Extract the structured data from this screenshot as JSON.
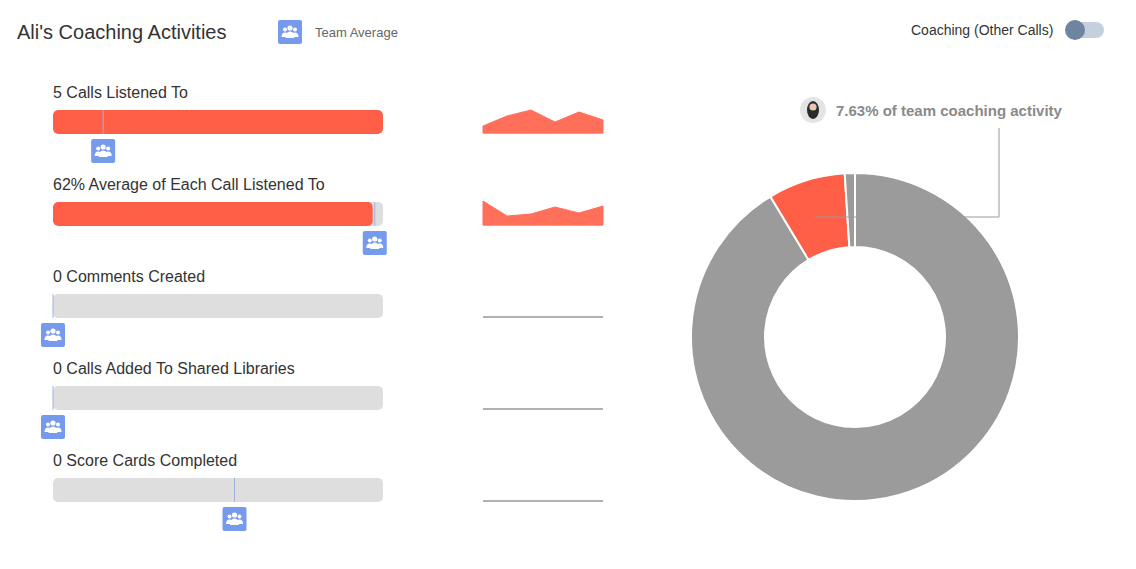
{
  "header": {
    "title": "Ali's Coaching Activities",
    "legend_label": "Team Average",
    "toggle_label": "Coaching (Other Calls)"
  },
  "chart_data": [
    {
      "type": "bar",
      "orientation": "horizontal",
      "title": "5 Calls Listened To",
      "values": [
        5
      ],
      "xlim": [
        0,
        5
      ],
      "team_average": 0.76,
      "color": "#ff5e47",
      "tick_labels": false
    },
    {
      "type": "bar",
      "orientation": "horizontal",
      "title": "62% Average of Each Call Listened To",
      "values": [
        62
      ],
      "xlim": [
        0,
        64
      ],
      "team_average": 62.4,
      "color": "#ff5e47",
      "tick_labels": false
    },
    {
      "type": "bar",
      "orientation": "horizontal",
      "title": "0 Comments Created",
      "values": [
        0
      ],
      "xlim": [
        0,
        1
      ],
      "team_average": 0,
      "color": "#ff5e47",
      "tick_labels": false
    },
    {
      "type": "bar",
      "orientation": "horizontal",
      "title": "0 Calls Added To Shared Libraries",
      "values": [
        0
      ],
      "xlim": [
        0,
        1
      ],
      "team_average": 0,
      "color": "#ff5e47",
      "tick_labels": false
    },
    {
      "type": "bar",
      "orientation": "horizontal",
      "title": "0 Score Cards Completed",
      "values": [
        0
      ],
      "xlim": [
        0,
        1
      ],
      "team_average": 0.55,
      "color": "#ff5e47",
      "tick_labels": false
    },
    {
      "type": "area",
      "values": [
        7,
        17,
        23,
        11,
        21,
        13
      ],
      "ylim": [
        0,
        25
      ],
      "color": "#ff6f5a",
      "tick_labels": false
    },
    {
      "type": "area",
      "values": [
        24,
        9,
        11,
        18,
        12,
        19
      ],
      "ylim": [
        0,
        25
      ],
      "color": "#ff6f5a",
      "tick_labels": false
    },
    {
      "type": "area",
      "values": [
        0,
        0,
        0,
        0,
        0,
        0
      ],
      "ylim": [
        0,
        25
      ],
      "color": "#a6a6a6",
      "tick_labels": false
    },
    {
      "type": "area",
      "values": [
        0,
        0,
        0,
        0,
        0,
        0
      ],
      "ylim": [
        0,
        25
      ],
      "color": "#a6a6a6",
      "tick_labels": false
    },
    {
      "type": "area",
      "values": [
        0,
        0,
        0,
        0,
        0,
        0
      ],
      "ylim": [
        0,
        25
      ],
      "color": "#a6a6a6",
      "tick_labels": false
    },
    {
      "type": "donut",
      "values": [
        91.37,
        7.63,
        1.0
      ],
      "colors": [
        "#9b9b9b",
        "#ff5e47",
        "#9b9b9b"
      ],
      "annotation": "7.63% of team coaching activity"
    }
  ]
}
